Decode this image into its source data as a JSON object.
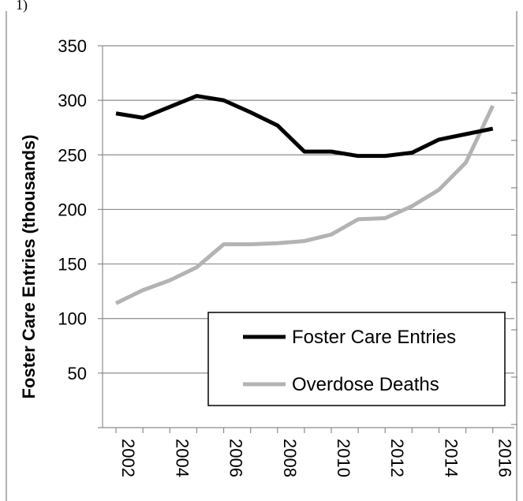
{
  "corner_text": "1)",
  "chart_data": {
    "type": "line",
    "title": "",
    "xlabel": "",
    "ylabel": "Foster Care Entries (thousands)",
    "xlim": [
      2001.5,
      2016.8
    ],
    "ylim": [
      0,
      350
    ],
    "x_ticks": [
      "2002",
      "2004",
      "2006",
      "2008",
      "2010",
      "2012",
      "2014",
      "2016"
    ],
    "y_ticks": [
      50,
      100,
      150,
      200,
      250,
      300,
      350
    ],
    "grid": true,
    "legend_position": "bottom-right",
    "secondary_axis": "right, unlabeled",
    "x": [
      2002,
      2003,
      2004,
      2005,
      2006,
      2007,
      2008,
      2009,
      2010,
      2011,
      2012,
      2013,
      2014,
      2015,
      2016
    ],
    "series": [
      {
        "name": "Foster Care Entries",
        "color": "#000000",
        "axis": "left",
        "values": [
          288,
          284,
          294,
          304,
          300,
          289,
          277,
          253,
          253,
          249,
          249,
          252,
          264,
          269,
          274
        ]
      },
      {
        "name": "Overdose Deaths",
        "color": "#b3b3b3",
        "axis": "right",
        "values": [
          114,
          126,
          135,
          147,
          168,
          168,
          169,
          171,
          177,
          191,
          192,
          203,
          218,
          243,
          295
        ]
      }
    ]
  }
}
